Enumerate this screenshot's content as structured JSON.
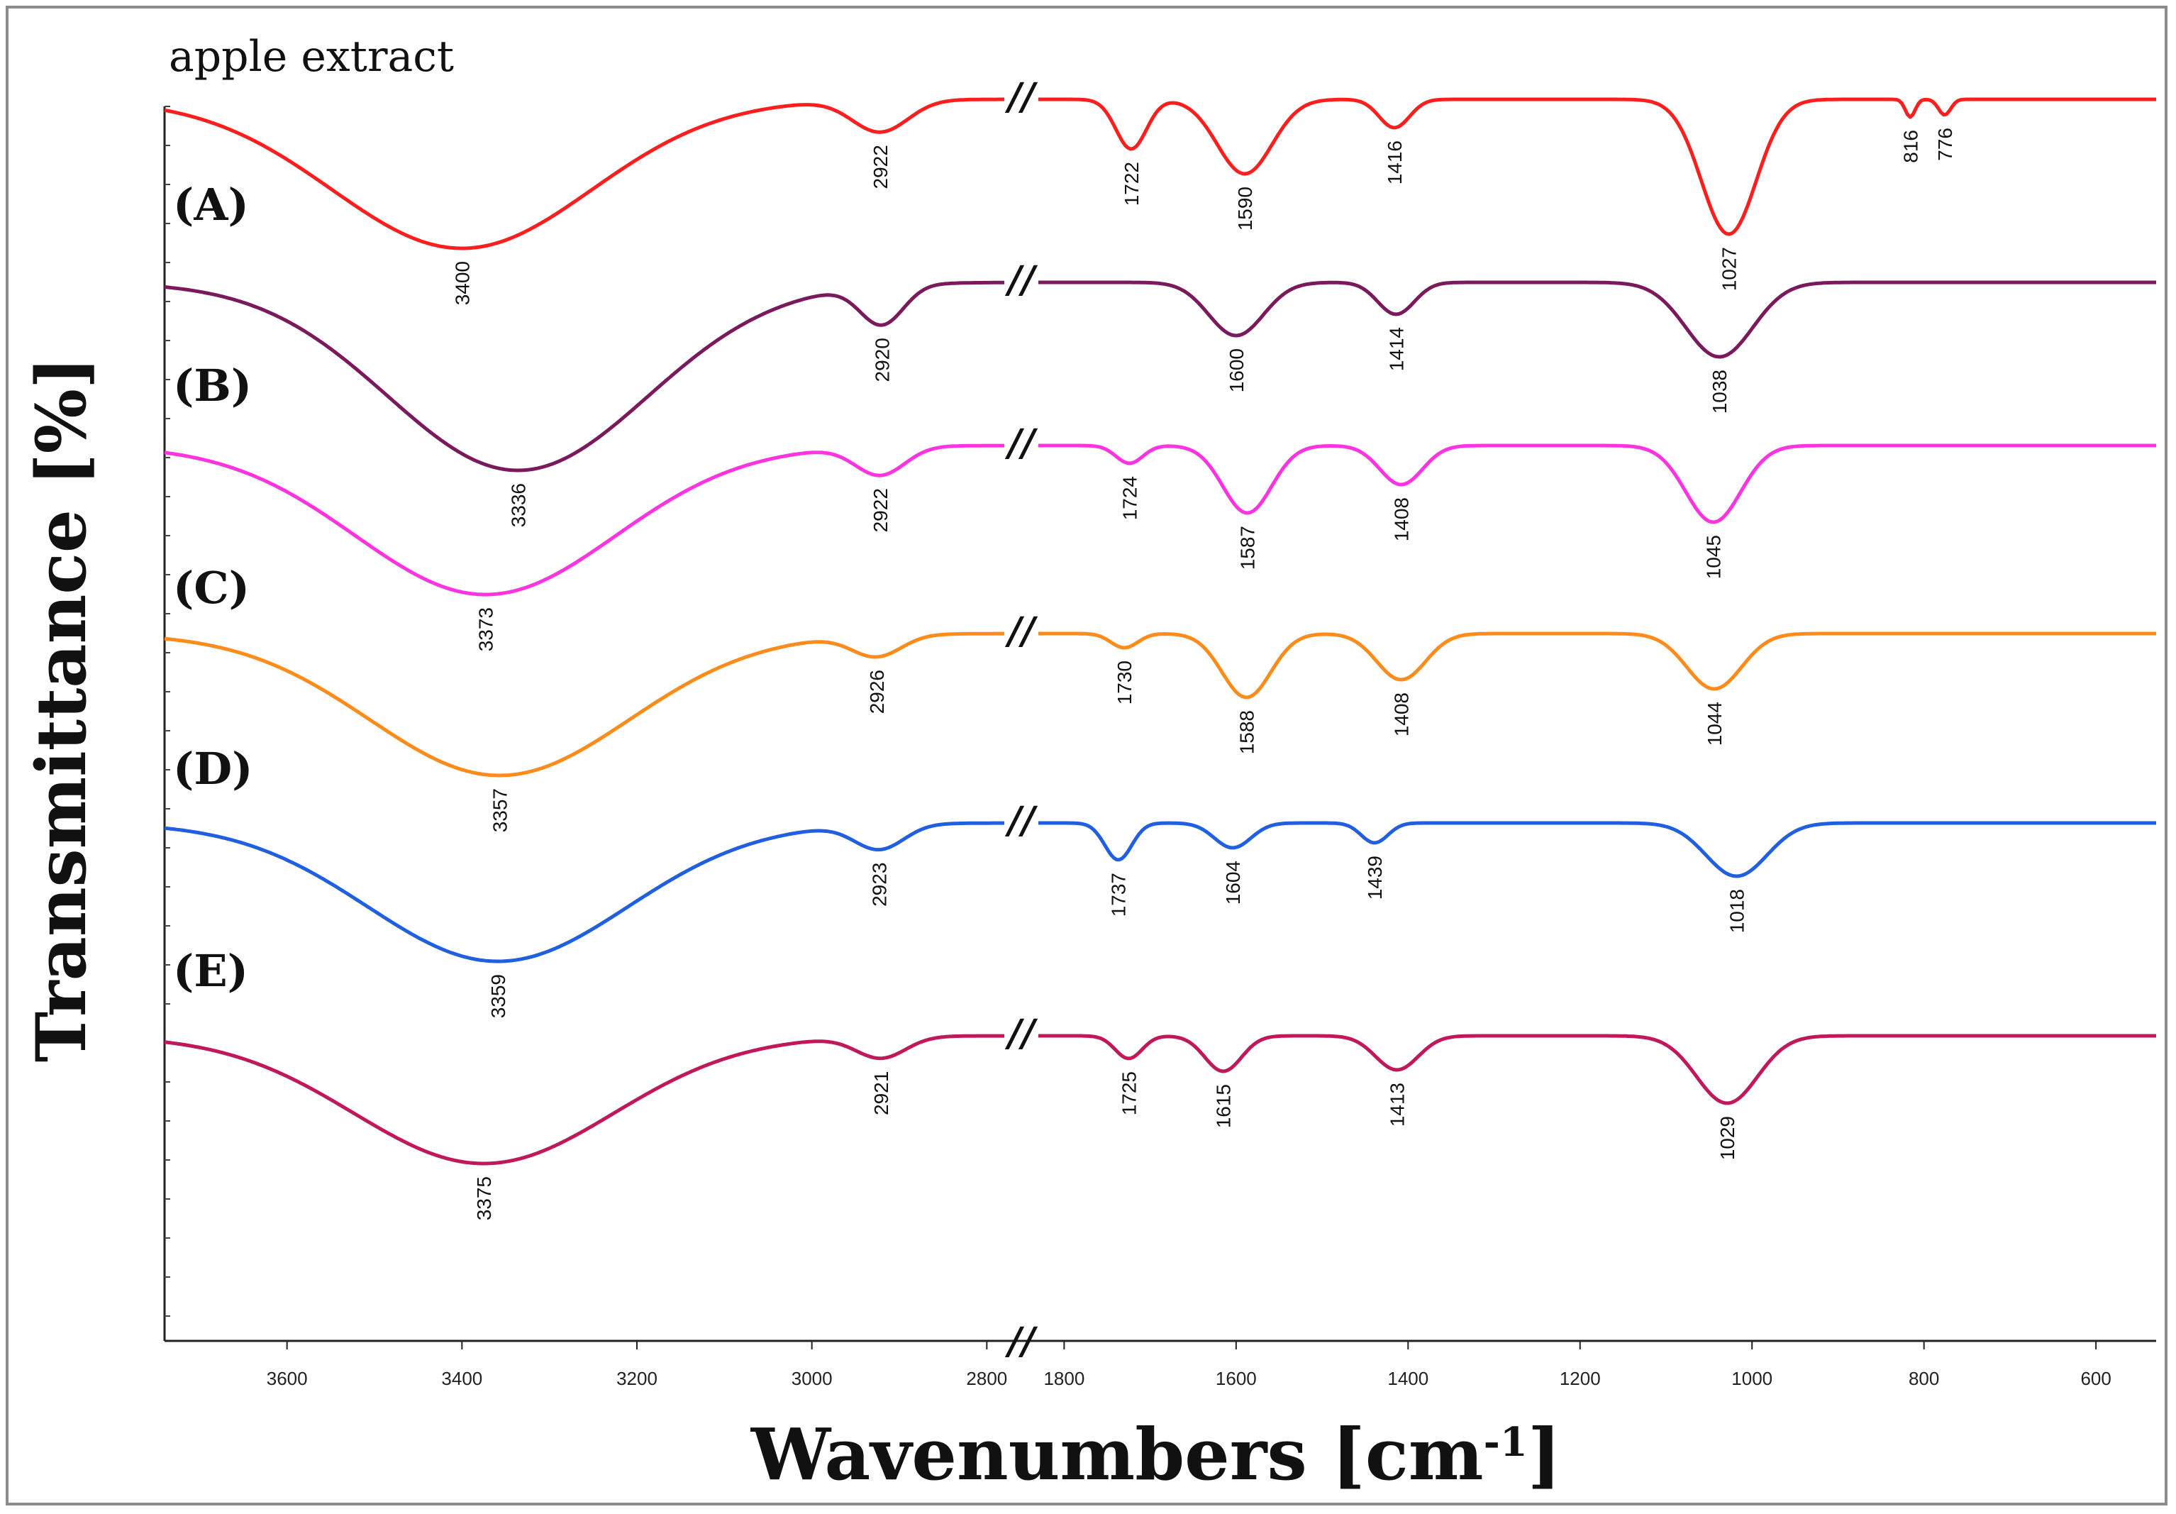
{
  "chart_data": {
    "type": "line",
    "title": "apple extract",
    "xlabel": "Wavenumbers [cm",
    "xlabel_sup": "-1",
    "xlabel_close": "]",
    "ylabel": "Transmittance [%]",
    "axis_break": "//",
    "x_segments": [
      {
        "range": [
          3740,
          2780
        ],
        "ticks": [
          3600,
          3400,
          3200,
          3000,
          2800
        ]
      },
      {
        "range": [
          1830,
          530
        ],
        "ticks": [
          1800,
          1600,
          1400,
          1200,
          1000,
          800,
          600
        ]
      }
    ],
    "series": [
      {
        "name": "(A)",
        "color": "#ff1e1e",
        "peaks": [
          3400,
          2922,
          1722,
          1590,
          1416,
          1027,
          816,
          776
        ],
        "labels": [
          "3400",
          "2922",
          "1722",
          "1590",
          "1416",
          "1027",
          "816",
          "776"
        ]
      },
      {
        "name": "(B)",
        "color": "#7a1a5c",
        "peaks": [
          3336,
          2920,
          1600,
          1414,
          1038
        ],
        "labels": [
          "3336",
          "2920",
          "1600",
          "1414",
          "1038"
        ]
      },
      {
        "name": "(C)",
        "color": "#ff33e0",
        "peaks": [
          3373,
          2922,
          1724,
          1587,
          1408,
          1045
        ],
        "labels": [
          "3373",
          "2922",
          "1724",
          "1587",
          "1408",
          "1045"
        ]
      },
      {
        "name": "(D)",
        "color": "#ff8c1a",
        "peaks": [
          3357,
          2926,
          1730,
          1588,
          1408,
          1044
        ],
        "labels": [
          "3357",
          "2926",
          "1730",
          "1588",
          "1408",
          "1044"
        ]
      },
      {
        "name": "(E)",
        "color": "#1f5fe0",
        "peaks": [
          3359,
          2923,
          1737,
          1604,
          1439,
          1018
        ],
        "labels": [
          "3359",
          "2923",
          "1737",
          "1604",
          "1439",
          "1018"
        ]
      },
      {
        "name": "",
        "color": "#c0185a",
        "peaks": [
          3375,
          2921,
          1725,
          1615,
          1413,
          1029
        ],
        "labels": [
          "3375",
          "2921",
          "1725",
          "1615",
          "1413",
          "1029"
        ]
      }
    ],
    "grid": false,
    "legend": "none"
  }
}
